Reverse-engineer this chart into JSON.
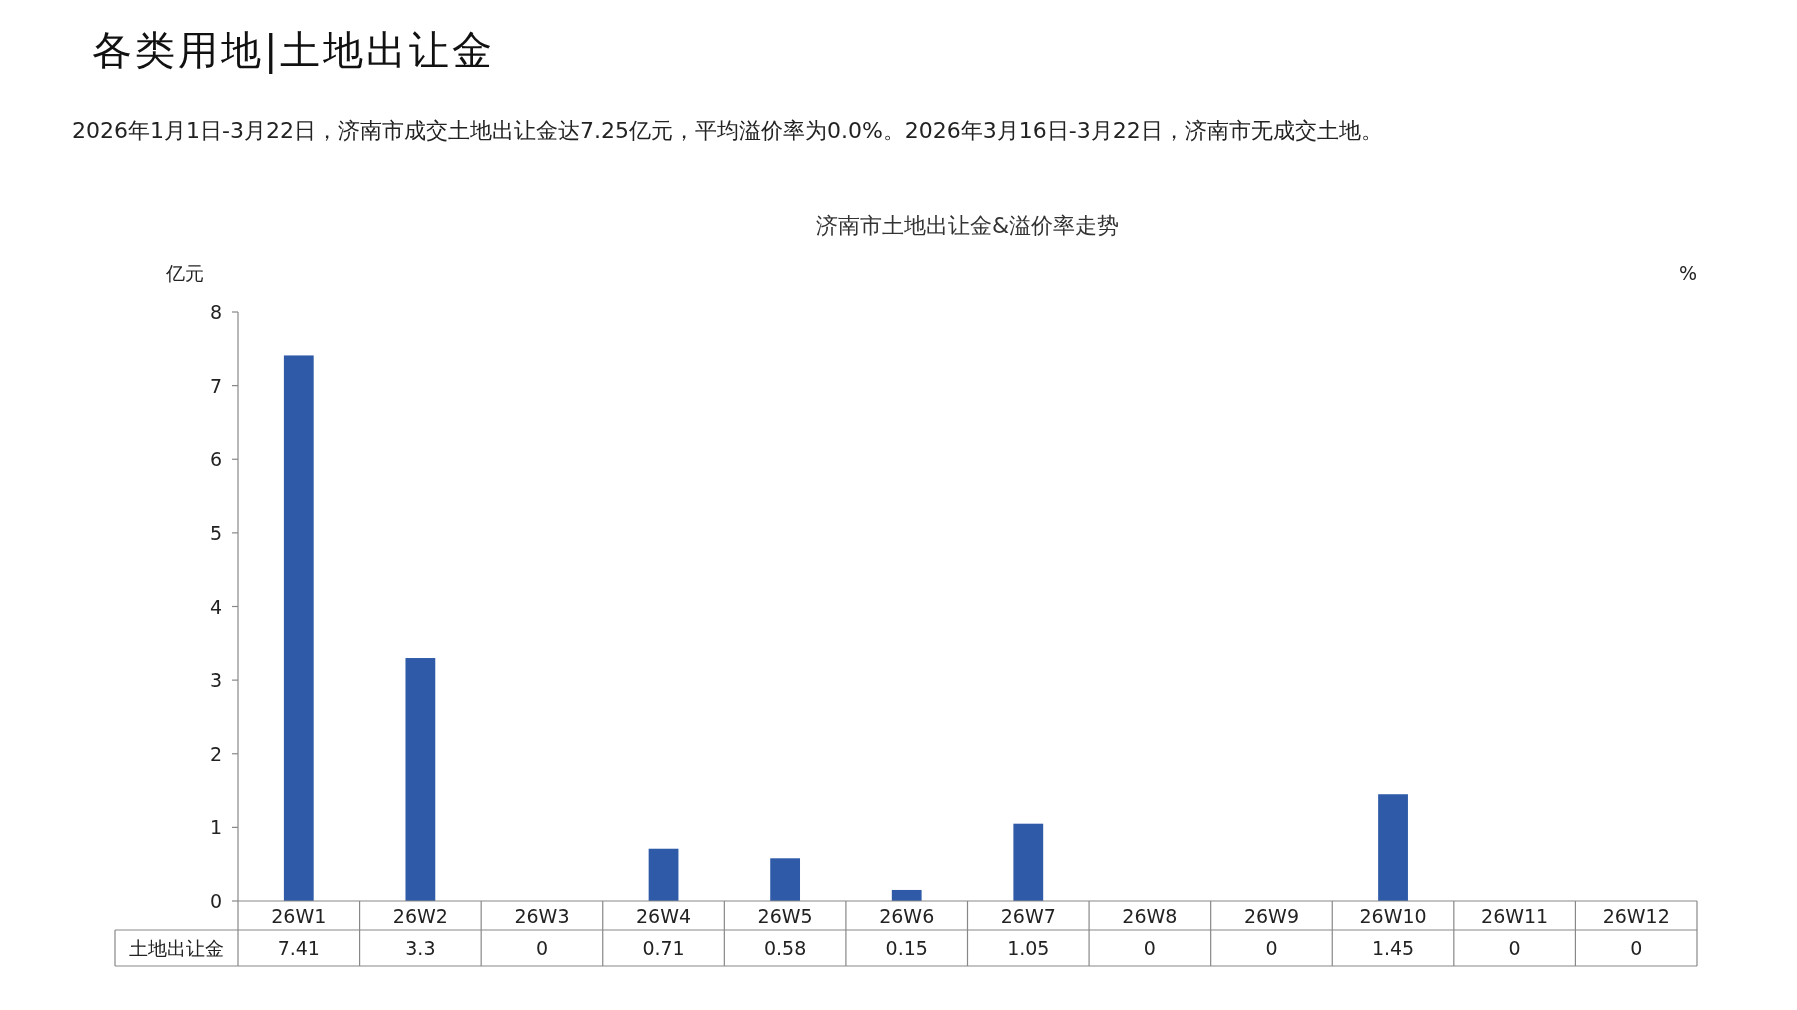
{
  "chart_data": {
    "type": "bar",
    "title": "济南市土地出让金&溢价率走势",
    "ylabel": "亿元",
    "y2label": "%",
    "annotations": [
      "各类用地|土地出让金",
      "2026年1月1日-3月22日，济南市成交土地出让金达7.25亿元，平均溢价率为0.0%。2026年3月16日-3月22日，济南市无成交土地。"
    ],
    "categories": [
      "26W1",
      "26W2",
      "26W3",
      "26W4",
      "26W5",
      "26W6",
      "26W7",
      "26W8",
      "26W9",
      "26W10",
      "26W11",
      "26W12"
    ],
    "series": [
      {
        "name": "土地出让金",
        "color": "#2e5aa8",
        "values": [
          7.41,
          3.3,
          0,
          0.71,
          0.58,
          0.15,
          1.05,
          0,
          0,
          1.45,
          0,
          0
        ]
      }
    ],
    "ylim": [
      0,
      8
    ],
    "yticks": [
      0,
      1,
      2,
      3,
      4,
      5,
      6,
      7,
      8
    ],
    "grid": false,
    "data_labels": true
  }
}
